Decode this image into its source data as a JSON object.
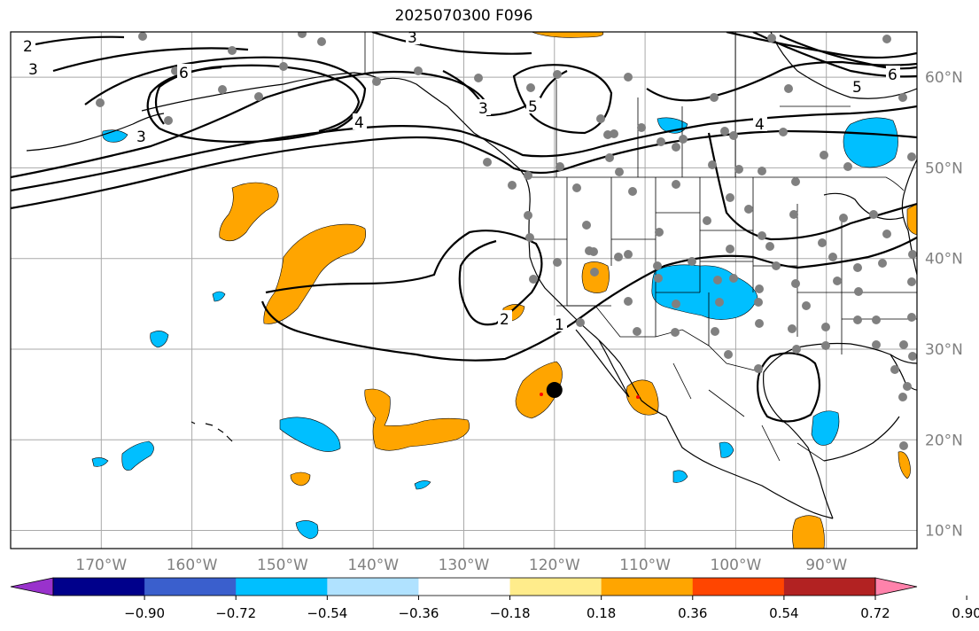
{
  "title": "2025070300 F096",
  "map": {
    "projection": "PlateCarree",
    "extent_lon": [
      -180,
      -80
    ],
    "extent_lat": [
      8,
      65
    ],
    "gridlines": true,
    "lon_ticks": [
      {
        "value": -170,
        "label": "170°W"
      },
      {
        "value": -160,
        "label": "160°W"
      },
      {
        "value": -150,
        "label": "150°W"
      },
      {
        "value": -140,
        "label": "140°W"
      },
      {
        "value": -130,
        "label": "130°W"
      },
      {
        "value": -120,
        "label": "120°W"
      },
      {
        "value": -110,
        "label": "110°W"
      },
      {
        "value": -100,
        "label": "100°W"
      },
      {
        "value": -90,
        "label": "90°W"
      }
    ],
    "lat_ticks": [
      {
        "value": 60,
        "label": "60°N"
      },
      {
        "value": 50,
        "label": "50°N"
      },
      {
        "value": 40,
        "label": "40°N"
      },
      {
        "value": 30,
        "label": "30°N"
      },
      {
        "value": 20,
        "label": "20°N"
      },
      {
        "value": 10,
        "label": "10°N"
      }
    ],
    "contour_labels": [
      "2",
      "3",
      "6",
      "3",
      "4",
      "3",
      "5",
      "3",
      "5",
      "6",
      "4",
      "1",
      "2"
    ],
    "marker": {
      "lon": -120,
      "lat": 25.5,
      "color": "#000000"
    },
    "station_color": "#808080"
  },
  "colorbar": {
    "colors": [
      "#9932cc",
      "#00008b",
      "#3a5fcd",
      "#00bfff",
      "#b0e2ff",
      "#ffffff",
      "#ffec8b",
      "#ffa500",
      "#ff4500",
      "#b22222",
      "#ff82ab"
    ],
    "tick_labels": [
      "−0.90",
      "−0.72",
      "−0.54",
      "−0.36",
      "−0.18",
      "0.18",
      "0.36",
      "0.54",
      "0.72",
      "0.90"
    ]
  }
}
